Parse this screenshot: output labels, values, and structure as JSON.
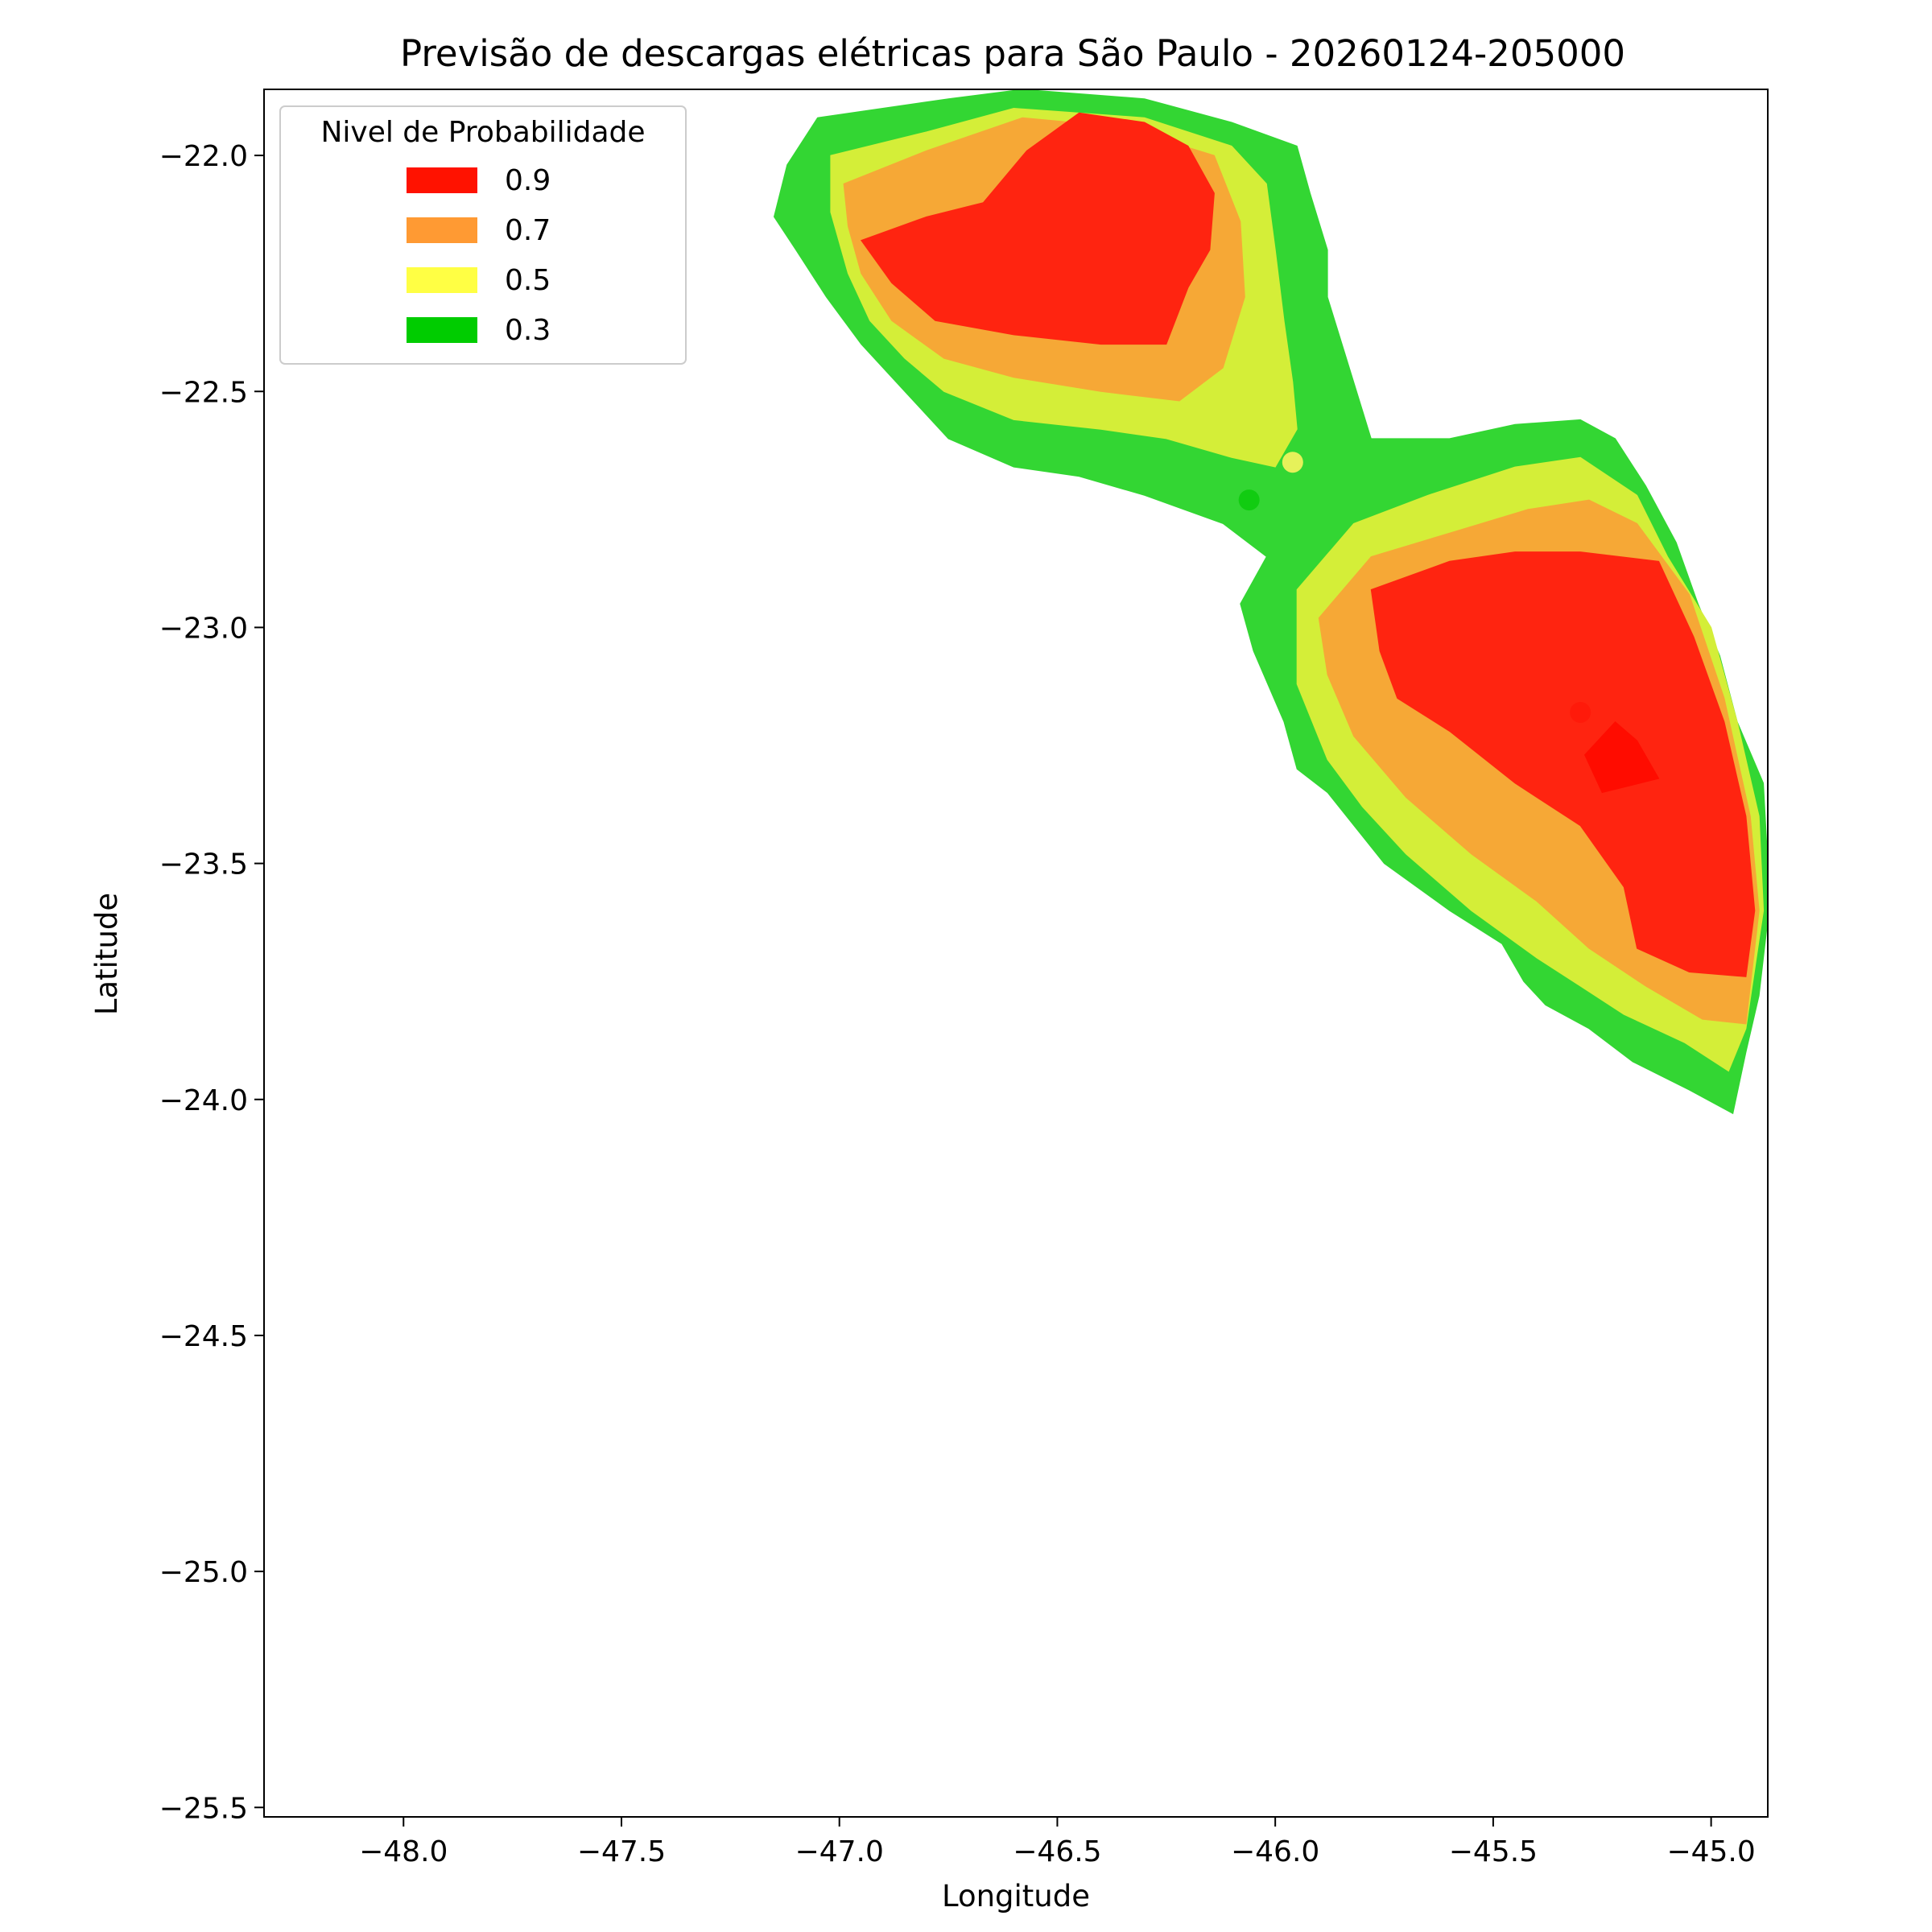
{
  "chart_data": {
    "type": "contour",
    "title": "Previsão de descargas elétricas para São Paulo - 20260124-205000",
    "xlabel": "Longitude",
    "ylabel": "Latitude",
    "xlim": [
      -48.32,
      -44.87
    ],
    "ylim": [
      -25.52,
      -21.86
    ],
    "xticks": [
      -48.0,
      -47.5,
      -47.0,
      -46.5,
      -46.0,
      -45.5,
      -45.0
    ],
    "yticks": [
      -22.0,
      -22.5,
      -23.0,
      -23.5,
      -24.0,
      -24.5,
      -25.0,
      -25.5
    ],
    "grid": false,
    "legend": {
      "title": "Nivel de Probabilidade",
      "placement": "upper-left",
      "entries": [
        {
          "label": "0.9",
          "color": "#ff1200"
        },
        {
          "label": "0.7",
          "color": "#ff9a33"
        },
        {
          "label": "0.5",
          "color": "#ffff44"
        },
        {
          "label": "0.3",
          "color": "#00cc00"
        }
      ]
    },
    "levels": [
      {
        "level": 0.3,
        "color": "#33d633",
        "regions": [
          [
            [
              -47.05,
              -21.92
            ],
            [
              -46.75,
              -21.88
            ],
            [
              -46.58,
              -21.86
            ],
            [
              -46.3,
              -21.88
            ],
            [
              -46.1,
              -21.93
            ],
            [
              -45.95,
              -21.98
            ],
            [
              -45.92,
              -22.08
            ],
            [
              -45.88,
              -22.2
            ],
            [
              -45.88,
              -22.3
            ],
            [
              -45.84,
              -22.42
            ],
            [
              -45.8,
              -22.54
            ],
            [
              -45.78,
              -22.6
            ],
            [
              -45.6,
              -22.6
            ],
            [
              -45.45,
              -22.57
            ],
            [
              -45.3,
              -22.56
            ],
            [
              -45.22,
              -22.6
            ],
            [
              -45.15,
              -22.7
            ],
            [
              -45.08,
              -22.82
            ],
            [
              -45.03,
              -22.95
            ],
            [
              -44.98,
              -23.06
            ],
            [
              -44.94,
              -23.2
            ],
            [
              -44.88,
              -23.33
            ],
            [
              -44.87,
              -23.5
            ],
            [
              -44.87,
              -23.62
            ],
            [
              -44.89,
              -23.78
            ],
            [
              -44.92,
              -23.9
            ],
            [
              -44.95,
              -24.03
            ],
            [
              -45.05,
              -23.98
            ],
            [
              -45.18,
              -23.92
            ],
            [
              -45.28,
              -23.85
            ],
            [
              -45.38,
              -23.8
            ],
            [
              -45.43,
              -23.75
            ],
            [
              -45.48,
              -23.67
            ],
            [
              -45.6,
              -23.6
            ],
            [
              -45.75,
              -23.5
            ],
            [
              -45.88,
              -23.35
            ],
            [
              -45.95,
              -23.3
            ],
            [
              -45.98,
              -23.2
            ],
            [
              -46.05,
              -23.05
            ],
            [
              -46.08,
              -22.95
            ],
            [
              -46.02,
              -22.85
            ],
            [
              -46.12,
              -22.78
            ],
            [
              -46.3,
              -22.72
            ],
            [
              -46.45,
              -22.68
            ],
            [
              -46.6,
              -22.66
            ],
            [
              -46.75,
              -22.6
            ],
            [
              -46.85,
              -22.5
            ],
            [
              -46.95,
              -22.4
            ],
            [
              -47.03,
              -22.3
            ],
            [
              -47.1,
              -22.2
            ],
            [
              -47.15,
              -22.13
            ],
            [
              -47.12,
              -22.02
            ]
          ]
        ]
      },
      {
        "level": 0.5,
        "color": "#d4ee38",
        "regions": [
          [
            [
              -47.02,
              -22.0
            ],
            [
              -46.8,
              -21.95
            ],
            [
              -46.6,
              -21.9
            ],
            [
              -46.3,
              -21.92
            ],
            [
              -46.1,
              -21.98
            ],
            [
              -46.02,
              -22.06
            ],
            [
              -46.0,
              -22.2
            ],
            [
              -45.98,
              -22.35
            ],
            [
              -45.96,
              -22.48
            ],
            [
              -45.95,
              -22.58
            ],
            [
              -46.0,
              -22.66
            ],
            [
              -46.1,
              -22.64
            ],
            [
              -46.25,
              -22.6
            ],
            [
              -46.4,
              -22.58
            ],
            [
              -46.6,
              -22.56
            ],
            [
              -46.76,
              -22.5
            ],
            [
              -46.85,
              -22.43
            ],
            [
              -46.93,
              -22.35
            ],
            [
              -46.98,
              -22.25
            ],
            [
              -47.02,
              -22.12
            ]
          ],
          [
            [
              -45.95,
              -22.92
            ],
            [
              -45.82,
              -22.78
            ],
            [
              -45.65,
              -22.72
            ],
            [
              -45.45,
              -22.66
            ],
            [
              -45.3,
              -22.64
            ],
            [
              -45.17,
              -22.72
            ],
            [
              -45.1,
              -22.85
            ],
            [
              -45.0,
              -23.0
            ],
            [
              -44.94,
              -23.2
            ],
            [
              -44.89,
              -23.4
            ],
            [
              -44.88,
              -23.6
            ],
            [
              -44.92,
              -23.85
            ],
            [
              -44.96,
              -23.94
            ],
            [
              -45.06,
              -23.88
            ],
            [
              -45.2,
              -23.82
            ],
            [
              -45.3,
              -23.76
            ],
            [
              -45.4,
              -23.7
            ],
            [
              -45.55,
              -23.6
            ],
            [
              -45.7,
              -23.48
            ],
            [
              -45.8,
              -23.38
            ],
            [
              -45.88,
              -23.28
            ],
            [
              -45.95,
              -23.12
            ]
          ]
        ]
      },
      {
        "level": 0.7,
        "color": "#f6a836",
        "regions": [
          [
            [
              -46.99,
              -22.06
            ],
            [
              -46.8,
              -21.99
            ],
            [
              -46.58,
              -21.92
            ],
            [
              -46.35,
              -21.94
            ],
            [
              -46.14,
              -22.0
            ],
            [
              -46.08,
              -22.14
            ],
            [
              -46.07,
              -22.3
            ],
            [
              -46.12,
              -22.45
            ],
            [
              -46.22,
              -22.52
            ],
            [
              -46.4,
              -22.5
            ],
            [
              -46.6,
              -22.47
            ],
            [
              -46.76,
              -22.43
            ],
            [
              -46.88,
              -22.35
            ],
            [
              -46.95,
              -22.25
            ],
            [
              -46.98,
              -22.15
            ]
          ],
          [
            [
              -45.9,
              -22.98
            ],
            [
              -45.78,
              -22.85
            ],
            [
              -45.6,
              -22.8
            ],
            [
              -45.42,
              -22.75
            ],
            [
              -45.28,
              -22.73
            ],
            [
              -45.17,
              -22.78
            ],
            [
              -45.05,
              -22.93
            ],
            [
              -44.97,
              -23.15
            ],
            [
              -44.91,
              -23.4
            ],
            [
              -44.89,
              -23.6
            ],
            [
              -44.92,
              -23.84
            ],
            [
              -45.02,
              -23.83
            ],
            [
              -45.15,
              -23.76
            ],
            [
              -45.28,
              -23.68
            ],
            [
              -45.4,
              -23.58
            ],
            [
              -45.55,
              -23.48
            ],
            [
              -45.7,
              -23.36
            ],
            [
              -45.82,
              -23.23
            ],
            [
              -45.88,
              -23.1
            ]
          ]
        ]
      },
      {
        "level": 0.9,
        "color": "#ff2410",
        "regions": [
          [
            [
              -46.95,
              -22.18
            ],
            [
              -46.8,
              -22.13
            ],
            [
              -46.67,
              -22.1
            ],
            [
              -46.57,
              -21.99
            ],
            [
              -46.45,
              -21.91
            ],
            [
              -46.3,
              -21.93
            ],
            [
              -46.2,
              -21.98
            ],
            [
              -46.14,
              -22.08
            ],
            [
              -46.15,
              -22.2
            ],
            [
              -46.2,
              -22.28
            ],
            [
              -46.25,
              -22.4
            ],
            [
              -46.4,
              -22.4
            ],
            [
              -46.6,
              -22.38
            ],
            [
              -46.78,
              -22.35
            ],
            [
              -46.88,
              -22.27
            ]
          ],
          [
            [
              -45.78,
              -22.92
            ],
            [
              -45.6,
              -22.86
            ],
            [
              -45.45,
              -22.84
            ],
            [
              -45.3,
              -22.84
            ],
            [
              -45.12,
              -22.86
            ],
            [
              -45.04,
              -23.02
            ],
            [
              -44.97,
              -23.2
            ],
            [
              -44.92,
              -23.4
            ],
            [
              -44.9,
              -23.6
            ],
            [
              -44.92,
              -23.74
            ],
            [
              -45.05,
              -23.73
            ],
            [
              -45.17,
              -23.68
            ],
            [
              -45.2,
              -23.55
            ],
            [
              -45.3,
              -23.42
            ],
            [
              -45.45,
              -23.33
            ],
            [
              -45.6,
              -23.22
            ],
            [
              -45.72,
              -23.15
            ],
            [
              -45.76,
              -23.05
            ]
          ]
        ]
      },
      {
        "level": 0.95,
        "color": "#ff0c00",
        "regions": [
          [
            [
              -45.29,
              -23.27
            ],
            [
              -45.22,
              -23.2
            ],
            [
              -45.17,
              -23.24
            ],
            [
              -45.12,
              -23.32
            ],
            [
              -45.25,
              -23.35
            ]
          ]
        ]
      }
    ],
    "points": [
      {
        "lon": -45.96,
        "lat": -22.65,
        "color": "#e6f15a"
      },
      {
        "lon": -46.06,
        "lat": -22.73,
        "color": "#11cc11"
      },
      {
        "lon": -45.3,
        "lat": -23.18,
        "color": "#ff1a0a"
      }
    ]
  }
}
